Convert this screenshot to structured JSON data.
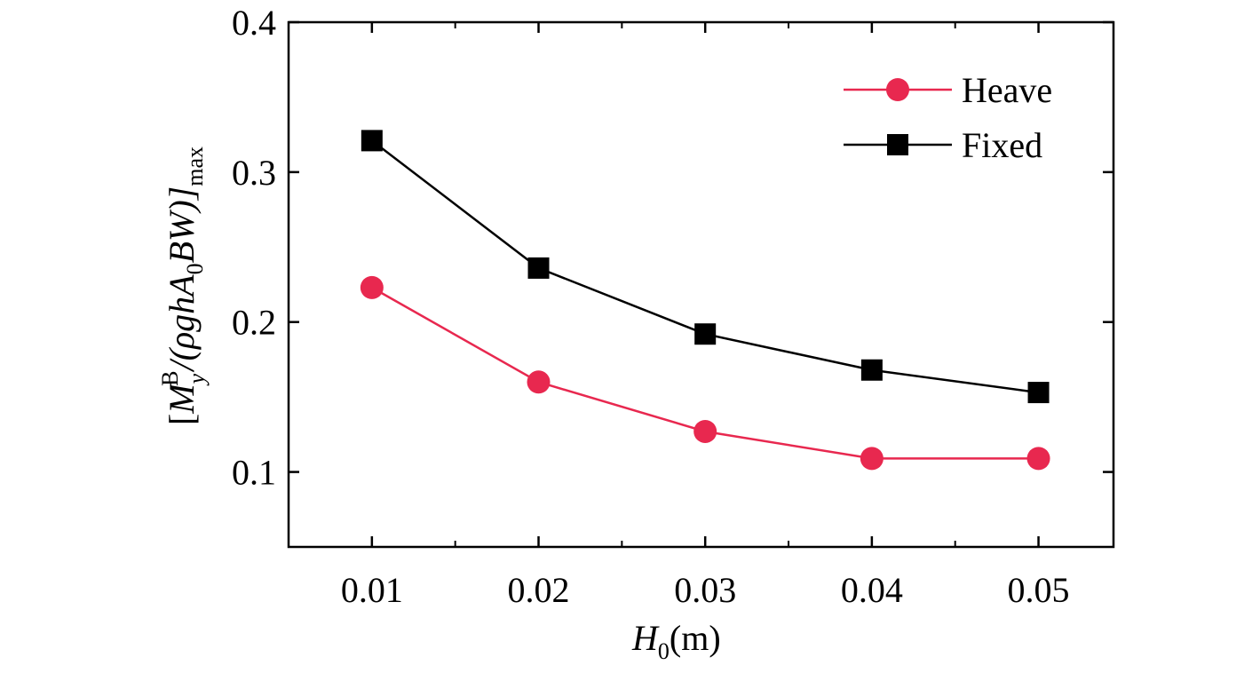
{
  "chart_data": {
    "type": "line",
    "x": [
      0.01,
      0.02,
      0.03,
      0.04,
      0.05
    ],
    "x_tick_labels": [
      "0.01",
      "0.02",
      "0.03",
      "0.04",
      "0.05"
    ],
    "y_tick_labels": [
      "0.1",
      "0.2",
      "0.3",
      "0.4"
    ],
    "y_ticks": [
      0.1,
      0.2,
      0.3,
      0.4
    ],
    "xlim": [
      0.005,
      0.0545
    ],
    "ylim": [
      0.05,
      0.4
    ],
    "xlabel": {
      "main": "H",
      "sub": "0",
      "rest": "(m)"
    },
    "ylabel": {
      "open": "[",
      "M": "M",
      "sub": "y",
      "sup": "B",
      "mid": "/(ρghA",
      "zero": "0",
      "tail": "BW)]",
      "max": "max"
    },
    "legend_position": "top-right",
    "grid": false,
    "series": [
      {
        "name": "Heave",
        "marker": "circle",
        "color": "#e8284f",
        "values": [
          0.223,
          0.16,
          0.127,
          0.109,
          0.109
        ]
      },
      {
        "name": "Fixed",
        "marker": "square",
        "color": "#000000",
        "values": [
          0.321,
          0.236,
          0.192,
          0.168,
          0.153
        ]
      }
    ]
  }
}
